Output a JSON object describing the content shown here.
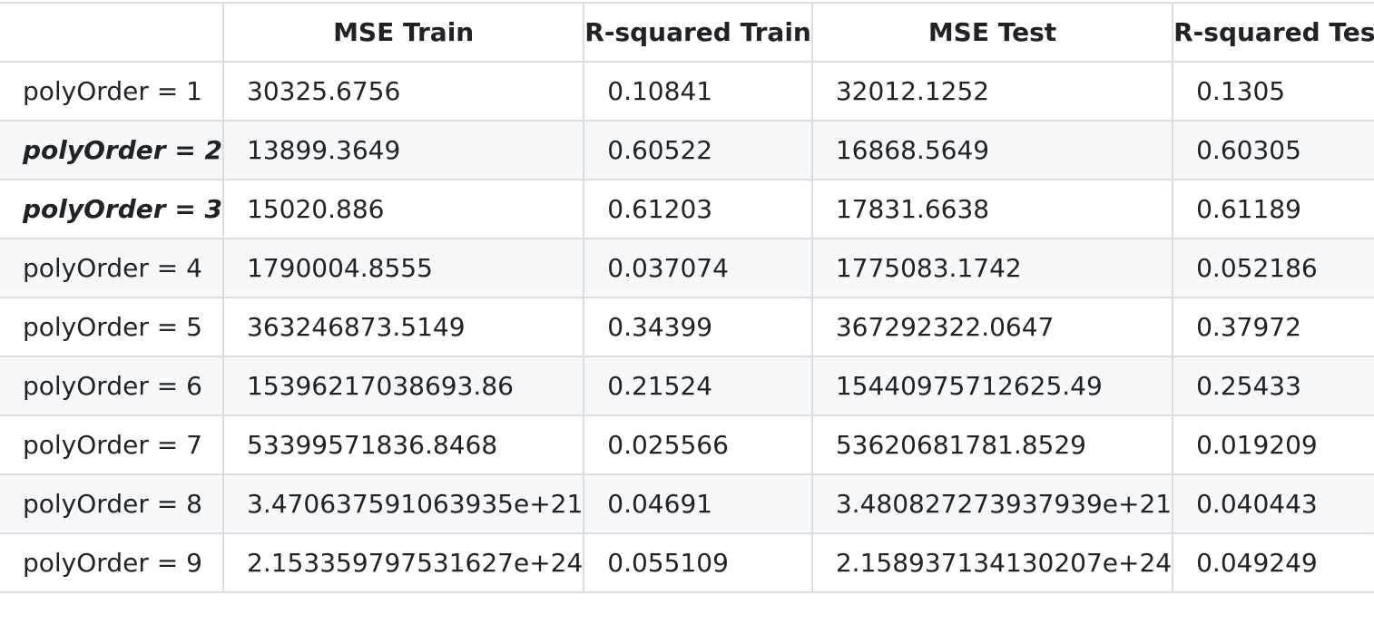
{
  "table": {
    "headers": [
      "",
      "MSE Train",
      "R-squared Train",
      "MSE Test",
      "R-squared Test"
    ],
    "rows": [
      {
        "label": "polyOrder = 1",
        "emphasis": false,
        "cells": [
          "30325.6756",
          "0.10841",
          "32012.1252",
          "0.1305"
        ]
      },
      {
        "label": "polyOrder = 2",
        "emphasis": true,
        "cells": [
          "13899.3649",
          "0.60522",
          "16868.5649",
          "0.60305"
        ]
      },
      {
        "label": "polyOrder = 3",
        "emphasis": true,
        "cells": [
          "15020.886",
          "0.61203",
          "17831.6638",
          "0.61189"
        ]
      },
      {
        "label": "polyOrder = 4",
        "emphasis": false,
        "cells": [
          "1790004.8555",
          "0.037074",
          "1775083.1742",
          "0.052186"
        ]
      },
      {
        "label": "polyOrder = 5",
        "emphasis": false,
        "cells": [
          "363246873.5149",
          "0.34399",
          "367292322.0647",
          "0.37972"
        ]
      },
      {
        "label": "polyOrder = 6",
        "emphasis": false,
        "cells": [
          "15396217038693.86",
          "0.21524",
          "15440975712625.49",
          "0.25433"
        ]
      },
      {
        "label": "polyOrder = 7",
        "emphasis": false,
        "cells": [
          "53399571836.8468",
          "0.025566",
          "53620681781.8529",
          "0.019209"
        ]
      },
      {
        "label": "polyOrder = 8",
        "emphasis": false,
        "cells": [
          "3.470637591063935e+21",
          "0.04691",
          "3.480827273937939e+21",
          "0.040443"
        ]
      },
      {
        "label": "polyOrder = 9",
        "emphasis": false,
        "cells": [
          "2.153359797531627e+24",
          "0.055109",
          "2.158937134130207e+24",
          "0.049249"
        ]
      }
    ]
  }
}
